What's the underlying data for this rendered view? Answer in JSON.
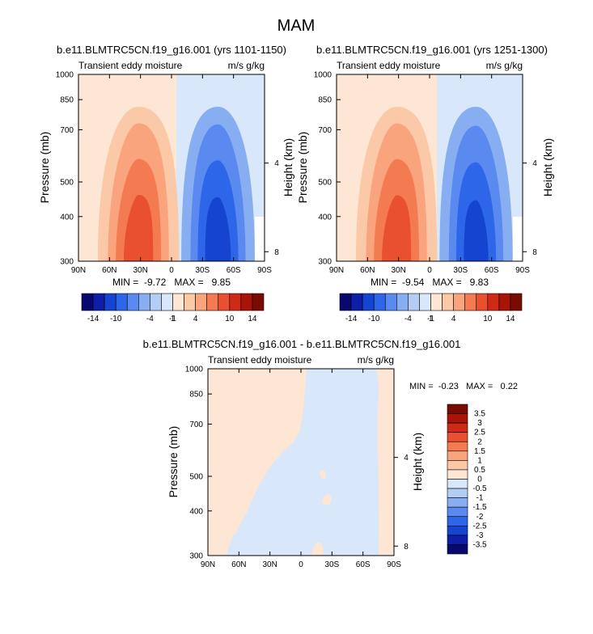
{
  "figure": {
    "title": "MAM"
  },
  "palette": {
    "eddy": [
      "#08086e",
      "#0e1ea6",
      "#1444d0",
      "#2d66e8",
      "#5a8aef",
      "#88aef2",
      "#b3cdf4",
      "#d8e7fa",
      "#fde6d4",
      "#fbc8a8",
      "#f9a47c",
      "#f47a52",
      "#e8502f",
      "#cf2a18",
      "#a81408",
      "#7a0a04"
    ],
    "diff": [
      "#08086e",
      "#0e1ea6",
      "#1444d0",
      "#2d66e8",
      "#5a8aef",
      "#88aef2",
      "#b3cdf4",
      "#d8e7fa",
      "#fde6d4",
      "#fbc8a8",
      "#f9a47c",
      "#f47a52",
      "#e8502f",
      "#cf2a18",
      "#a81408",
      "#7a0a04"
    ]
  },
  "chart_data": [
    {
      "type": "heatmap",
      "title": "b.e11.BLMTRC5CN.f19_g16.001 (yrs 1101-1150)",
      "left_label": "Transient eddy moisture",
      "right_label": "m/s g/kg",
      "xlabel": "",
      "ylabel": "Pressure (mb)",
      "y2label": "Height (km)",
      "x_ticks": [
        "90N",
        "60N",
        "30N",
        "0",
        "30S",
        "60S",
        "90S"
      ],
      "x_tick_values": [
        90,
        60,
        30,
        0,
        -30,
        -60,
        -90
      ],
      "y_ticks": [
        300,
        400,
        500,
        700,
        850,
        1000
      ],
      "y2_ticks": [
        "8",
        "4"
      ],
      "y2_tick_values": [
        8,
        4
      ],
      "ylim": [
        1000,
        300
      ],
      "stats": "MIN =  -9.72   MAX =   9.85",
      "min": -9.72,
      "max": 9.85,
      "contour_levels": [
        -14,
        -12,
        -10,
        -8,
        -6,
        -4,
        -2,
        -1,
        1,
        2,
        4,
        6,
        8,
        10,
        12,
        14
      ],
      "colorbar_labels": [
        "-14",
        "-10",
        "-4",
        "-1",
        "1",
        "4",
        "10",
        "14"
      ],
      "fields": [
        {
          "sign": 1,
          "lat": 32,
          "sx": 22,
          "p": 1000,
          "sp": 380,
          "amp": 9.85
        },
        {
          "sign": -1,
          "lat": -45,
          "sx": 20,
          "p": 1000,
          "sp": 420,
          "amp": 9.72
        }
      ]
    },
    {
      "type": "heatmap",
      "title": "b.e11.BLMTRC5CN.f19_g16.001 (yrs 1251-1300)",
      "left_label": "Transient eddy moisture",
      "right_label": "m/s g/kg",
      "xlabel": "",
      "ylabel": "Pressure (mb)",
      "y2label": "Height (km)",
      "x_ticks": [
        "90N",
        "60N",
        "30N",
        "0",
        "30S",
        "60S",
        "90S"
      ],
      "x_tick_values": [
        90,
        60,
        30,
        0,
        -30,
        -60,
        -90
      ],
      "y_ticks": [
        300,
        400,
        500,
        700,
        850,
        1000
      ],
      "y2_ticks": [
        "8",
        "4"
      ],
      "y2_tick_values": [
        8,
        4
      ],
      "ylim": [
        1000,
        300
      ],
      "stats": "MIN =  -9.54   MAX =   9.83",
      "min": -9.54,
      "max": 9.83,
      "contour_levels": [
        -14,
        -12,
        -10,
        -8,
        -6,
        -4,
        -2,
        -1,
        1,
        2,
        4,
        6,
        8,
        10,
        12,
        14
      ],
      "colorbar_labels": [
        "-14",
        "-10",
        "-4",
        "-1",
        "1",
        "4",
        "10",
        "14"
      ],
      "fields": [
        {
          "sign": 1,
          "lat": 32,
          "sx": 22,
          "p": 1000,
          "sp": 380,
          "amp": 9.83
        },
        {
          "sign": -1,
          "lat": -45,
          "sx": 20,
          "p": 1000,
          "sp": 420,
          "amp": 9.54
        }
      ]
    },
    {
      "type": "heatmap",
      "title": "b.e11.BLMTRC5CN.f19_g16.001 - b.e11.BLMTRC5CN.f19_g16.001",
      "left_label": "Transient eddy moisture",
      "right_label": "m/s g/kg",
      "xlabel": "",
      "ylabel": "Pressure (mb)",
      "y2label": "Height (km)",
      "x_ticks": [
        "90N",
        "60N",
        "30N",
        "0",
        "30S",
        "60S",
        "90S"
      ],
      "x_tick_values": [
        90,
        60,
        30,
        0,
        -30,
        -60,
        -90
      ],
      "y_ticks": [
        300,
        400,
        500,
        700,
        850,
        1000
      ],
      "y2_ticks": [
        "8",
        "4"
      ],
      "y2_tick_values": [
        8,
        4
      ],
      "ylim": [
        1000,
        300
      ],
      "stats": "MIN =  -0.23   MAX =   0.22",
      "min": -0.23,
      "max": 0.22,
      "contour_levels": [
        -3.5,
        -3,
        -2.5,
        -2,
        -1.5,
        -1,
        -0.5,
        0,
        0.5,
        1,
        1.5,
        2,
        2.5,
        3,
        3.5
      ],
      "colorbar_labels": [
        "3.5",
        "3",
        "2.5",
        "2",
        "1.5",
        "1",
        "0.5",
        "0",
        "-0.5",
        "-1",
        "-1.5",
        "-2",
        "-2.5",
        "-3",
        "-3.5"
      ]
    }
  ]
}
